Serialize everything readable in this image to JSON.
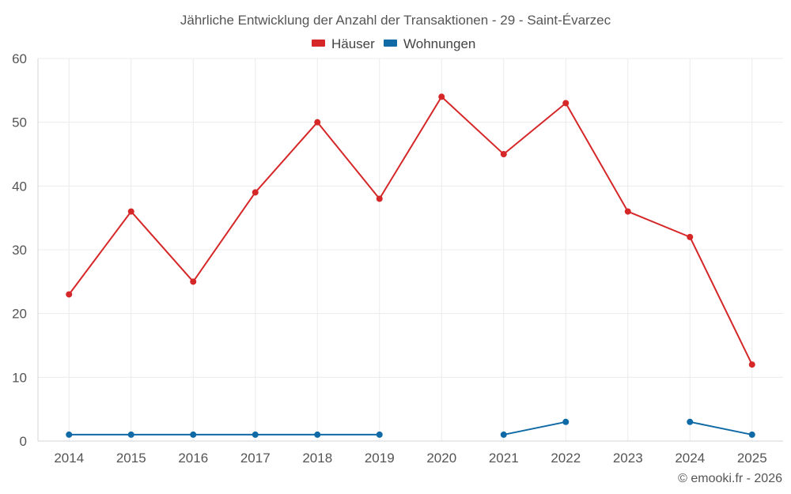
{
  "chart_data": {
    "type": "line",
    "title": "Jährliche Entwicklung der Anzahl der Transaktionen - 29 - Saint-Évarzec",
    "categories": [
      "2014",
      "2015",
      "2016",
      "2017",
      "2018",
      "2019",
      "2020",
      "2021",
      "2022",
      "2023",
      "2024",
      "2025"
    ],
    "series": [
      {
        "name": "Häuser",
        "color": "#d62728",
        "values": [
          23,
          36,
          25,
          39,
          50,
          38,
          54,
          45,
          53,
          36,
          32,
          12
        ]
      },
      {
        "name": "Wohnungen",
        "color": "#0f6aa6",
        "values": [
          1,
          1,
          1,
          1,
          1,
          1,
          null,
          1,
          3,
          null,
          3,
          1
        ]
      }
    ],
    "ylim": [
      0,
      60
    ],
    "yticks": [
      0,
      10,
      20,
      30,
      40,
      50,
      60
    ],
    "xlabel": "",
    "ylabel": "",
    "grid": true,
    "legend_position": "top-center"
  },
  "credit": "© emooki.fr - 2026"
}
